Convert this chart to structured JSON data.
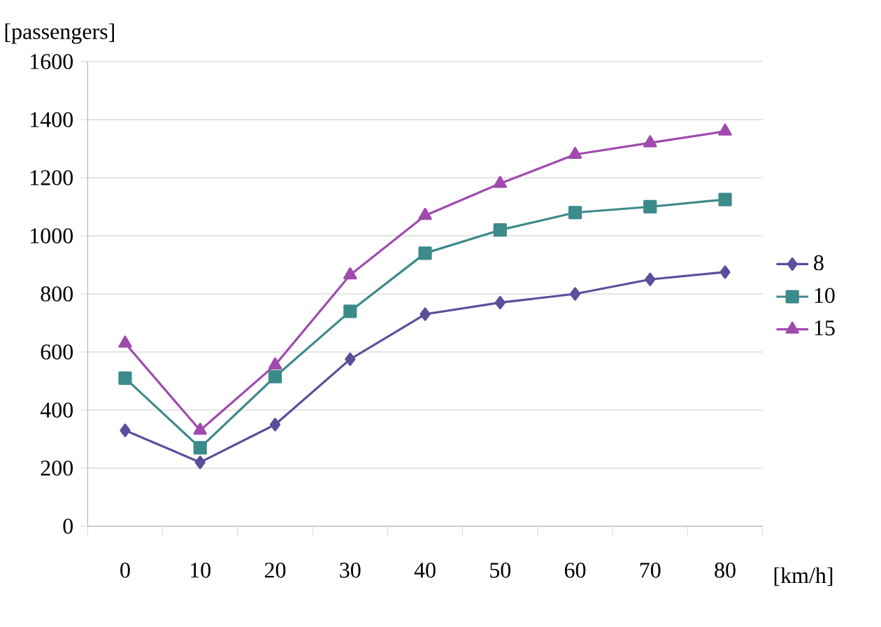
{
  "chart_data": {
    "type": "line",
    "xlabel": "[km/h]",
    "ylabel": "[passengers]",
    "categories": [
      "0",
      "10",
      "20",
      "30",
      "40",
      "50",
      "60",
      "70",
      "80"
    ],
    "series": [
      {
        "name": "8",
        "color": "#5a4f9a",
        "marker": "diamond",
        "values": [
          330,
          220,
          350,
          575,
          730,
          770,
          800,
          850,
          875
        ]
      },
      {
        "name": "10",
        "color": "#3d8a8a",
        "marker": "square",
        "values": [
          510,
          270,
          515,
          740,
          940,
          1020,
          1080,
          1100,
          1125
        ]
      },
      {
        "name": "15",
        "color": "#a04aae",
        "marker": "triangle",
        "values": [
          630,
          330,
          555,
          865,
          1070,
          1180,
          1280,
          1320,
          1360
        ]
      }
    ],
    "ylim": [
      0,
      1600
    ],
    "yticks": [
      0,
      200,
      400,
      600,
      800,
      1000,
      1200,
      1400,
      1600
    ],
    "grid": "y",
    "legend": "right",
    "line_style": "solid"
  }
}
